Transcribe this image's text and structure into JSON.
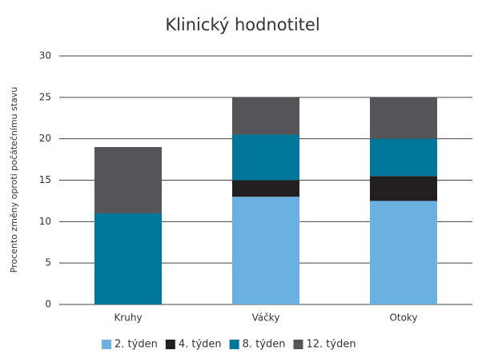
{
  "chart_data": {
    "type": "stacked_bar",
    "title": "Klinický hodnotitel",
    "y_label": "Procento změny oproti počátečnímu stavu",
    "categories": [
      "Kruhy",
      "Váčky",
      "Otoky"
    ],
    "series": [
      {
        "name": "2. týden",
        "color": "#6ab0e0",
        "values": [
          0,
          13,
          12.5
        ]
      },
      {
        "name": "4. týden",
        "color": "#231f20",
        "values": [
          0,
          2,
          3
        ]
      },
      {
        "name": "8. týden",
        "color": "#00769a",
        "values": [
          11,
          5.5,
          4.5
        ]
      },
      {
        "name": "12. týden",
        "color": "#555559",
        "values": [
          8,
          4.5,
          5
        ]
      }
    ],
    "ylim": [
      0,
      30
    ],
    "yticks": [
      0,
      5,
      10,
      15,
      20,
      25,
      30
    ],
    "grid": true,
    "legend": "bottom"
  }
}
